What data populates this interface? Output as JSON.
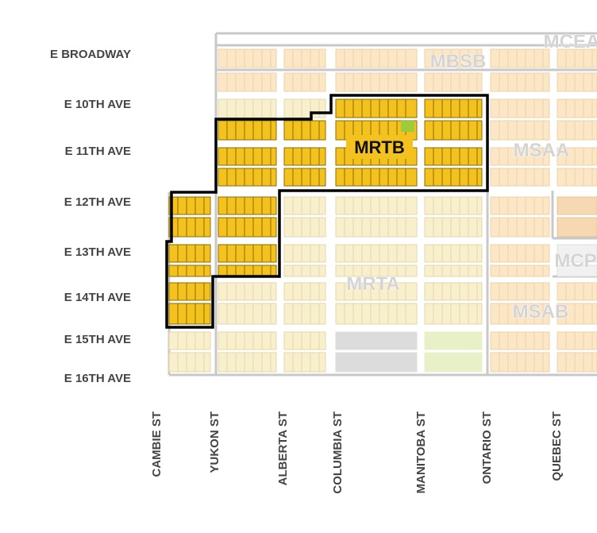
{
  "streets_horizontal": [
    "E BROADWAY",
    "E 10TH AVE",
    "E 11TH AVE",
    "E 12TH AVE",
    "E 13TH AVE",
    "E 14TH AVE",
    "E 15TH AVE",
    "E 16TH AVE"
  ],
  "streets_vertical": [
    "CAMBIE ST",
    "YUKON ST",
    "ALBERTA ST",
    "COLUMBIA ST",
    "MANITOBA ST",
    "ONTARIO ST",
    "QUEBEC ST"
  ],
  "zones": {
    "highlighted": "MRTB",
    "others": [
      "MRTA",
      "MSAA",
      "MSAB",
      "MBSB",
      "MCEA",
      "MCP"
    ]
  }
}
